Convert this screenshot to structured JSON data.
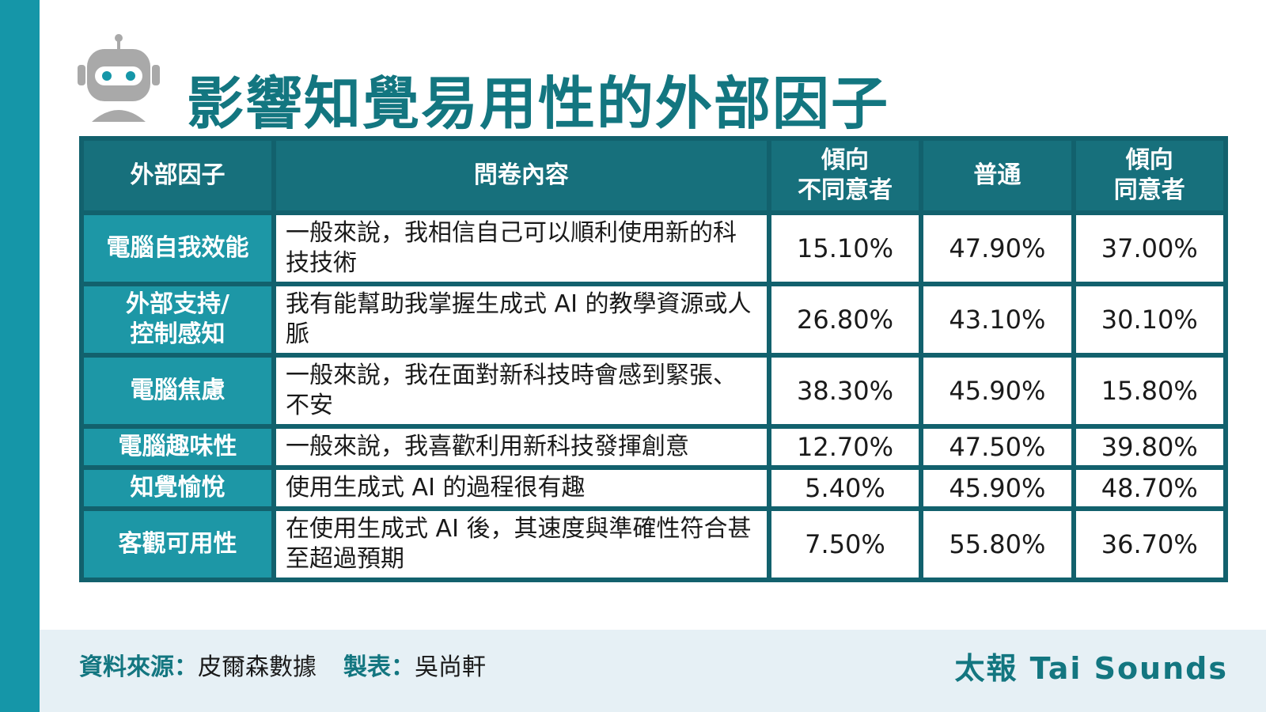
{
  "header": {
    "title": "影響知覺易用性的外部因子",
    "icon": "robot-icon"
  },
  "colors": {
    "accent": "#1596a8",
    "title": "#137680",
    "header_bg": "#17707c",
    "factor_bg": "#1d97a6",
    "border": "#12616d",
    "footer_bg": "#e6f0f5"
  },
  "chart_data": {
    "type": "table",
    "columns": [
      "外部因子",
      "問卷內容",
      "傾向\n不同意者",
      "普通",
      "傾向\n同意者"
    ],
    "rows": [
      {
        "factor": "電腦自我效能",
        "question": "一般來說，我相信自己可以順利使用新的科技技術",
        "values": [
          "15.10%",
          "47.90%",
          "37.00%"
        ]
      },
      {
        "factor": "外部支持/\n控制感知",
        "question": "我有能幫助我掌握生成式 AI 的教學資源或人脈",
        "values": [
          "26.80%",
          "43.10%",
          "30.10%"
        ]
      },
      {
        "factor": "電腦焦慮",
        "question": "一般來說，我在面對新科技時會感到緊張、不安",
        "values": [
          "38.30%",
          "45.90%",
          "15.80%"
        ]
      },
      {
        "factor": "電腦趣味性",
        "question": "一般來說，我喜歡利用新科技發揮創意",
        "values": [
          "12.70%",
          "47.50%",
          "39.80%"
        ]
      },
      {
        "factor": "知覺愉悅",
        "question": "使用生成式 AI 的過程很有趣",
        "values": [
          "5.40%",
          "45.90%",
          "48.70%"
        ]
      },
      {
        "factor": "客觀可用性",
        "question": "在使用生成式 AI 後，其速度與準確性符合甚至超過預期",
        "values": [
          "7.50%",
          "55.80%",
          "36.70%"
        ]
      }
    ]
  },
  "footer": {
    "source_label": "資料來源：",
    "source_value": "皮爾森數據",
    "maker_label": "製表：",
    "maker_value": "吳尚軒",
    "brand": "太報 Tai Sounds"
  }
}
